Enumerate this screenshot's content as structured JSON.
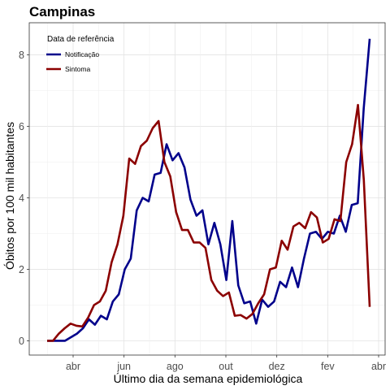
{
  "chart_data": {
    "type": "line",
    "title": "Campinas",
    "xlabel": "Último dia da semana epidemiológica",
    "ylabel": "Óbitos por 100 mil habitantes",
    "ylim": [
      -0.4,
      8.9
    ],
    "yticks": [
      0,
      2,
      4,
      6,
      8
    ],
    "x_ticks": [
      "abr",
      "jun",
      "ago",
      "out",
      "dez",
      "fev",
      "abr"
    ],
    "grid": true,
    "legend": {
      "title": "Data de referência",
      "position": "top-left"
    },
    "series": [
      {
        "name": "Notificação",
        "color": "#00008b",
        "values": [
          0,
          0,
          0,
          0,
          0.1,
          0.2,
          0.35,
          0.6,
          0.45,
          0.7,
          0.6,
          1.1,
          1.3,
          2.0,
          2.3,
          3.65,
          4.0,
          3.9,
          4.65,
          4.7,
          5.5,
          5.05,
          5.25,
          4.85,
          3.95,
          3.5,
          3.65,
          2.7,
          3.3,
          2.7,
          1.7,
          3.35,
          1.55,
          1.05,
          1.1,
          0.48,
          1.15,
          0.95,
          1.1,
          1.65,
          1.5,
          2.05,
          1.5,
          2.3,
          3.0,
          3.05,
          2.85,
          3.05,
          3.0,
          3.5,
          3.05,
          3.8,
          3.85,
          6.5,
          8.45
        ]
      },
      {
        "name": "Sintoma",
        "color": "#8b0000",
        "values": [
          0,
          0,
          0.2,
          0.35,
          0.48,
          0.42,
          0.4,
          0.65,
          1.0,
          1.1,
          1.4,
          2.2,
          2.7,
          3.5,
          5.1,
          4.95,
          5.45,
          5.6,
          5.95,
          6.15,
          5.0,
          4.6,
          3.6,
          3.1,
          3.1,
          2.75,
          2.75,
          2.6,
          1.7,
          1.4,
          1.25,
          1.35,
          0.7,
          0.72,
          0.62,
          0.75,
          1.05,
          1.3,
          2.0,
          2.05,
          2.8,
          2.55,
          3.2,
          3.3,
          3.15,
          3.6,
          3.45,
          2.75,
          2.85,
          3.4,
          3.35,
          5.0,
          5.5,
          6.6,
          4.5,
          0.95
        ]
      }
    ]
  }
}
